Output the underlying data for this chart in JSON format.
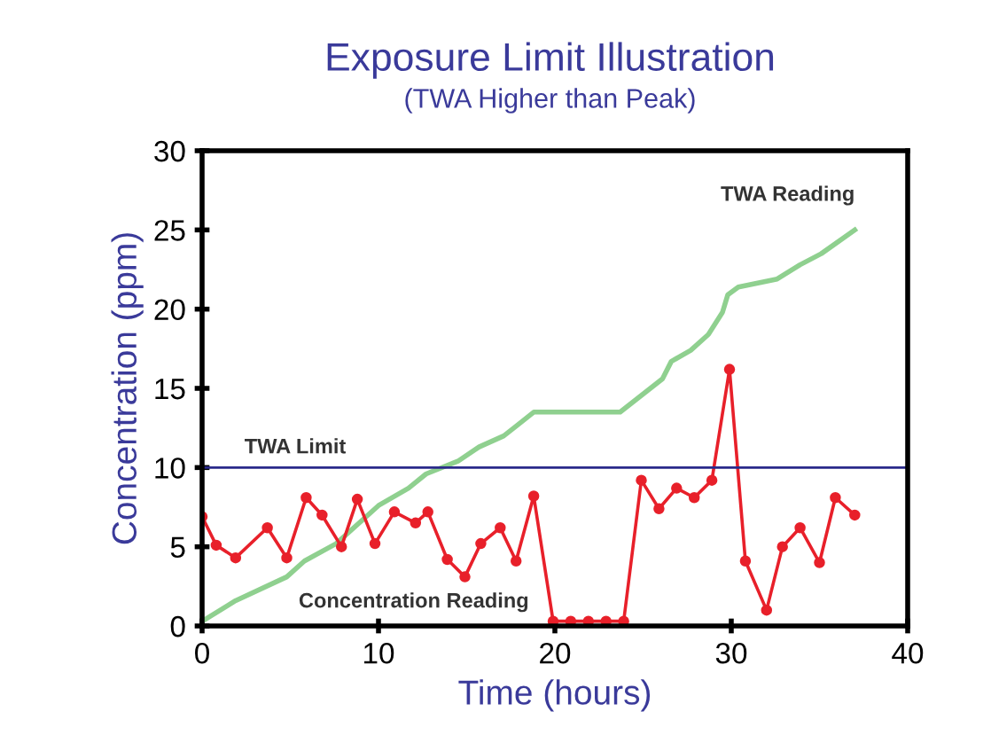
{
  "chart_data": {
    "type": "line",
    "title": "Exposure Limit Illustration",
    "subtitle": "(TWA Higher than Peak)",
    "xlabel": "Time (hours)",
    "ylabel": "Concentration (ppm)",
    "xlim": [
      0,
      40
    ],
    "xticks": [
      0,
      10,
      20,
      30,
      40
    ],
    "ylim": [
      0,
      30
    ],
    "yticks": [
      0,
      5,
      10,
      15,
      20,
      25,
      30
    ],
    "grid": false,
    "line_style": "solid",
    "series": [
      {
        "name": "TWA Reading",
        "color": "#8fd08f",
        "marker": "none",
        "x": [
          0,
          1.9,
          4.8,
          5.8,
          7.6,
          10,
          11.7,
          12.7,
          14.5,
          15.7,
          17.1,
          17.9,
          18.8,
          23.7,
          26.1,
          26.6,
          27.7,
          28.7,
          29.5,
          29.8,
          30.4,
          32.6,
          33.9,
          35.1,
          37
        ],
        "values": [
          0.3,
          1.6,
          3.1,
          4.1,
          5.2,
          7.6,
          8.7,
          9.6,
          10.4,
          11.3,
          12,
          12.7,
          13.5,
          13.5,
          15.6,
          16.7,
          17.4,
          18.4,
          19.8,
          20.9,
          21.4,
          21.9,
          22.8,
          23.5,
          25
        ]
      },
      {
        "name": "Concentration Reading",
        "color": "#e8202a",
        "marker": "circle",
        "x": [
          0,
          0.8,
          1.9,
          3.7,
          4.8,
          5.9,
          6.8,
          7.9,
          8.8,
          9.8,
          10.9,
          12.1,
          12.8,
          13.9,
          14.9,
          15.8,
          16.9,
          17.8,
          18.8,
          19.9,
          20.9,
          21.9,
          22.9,
          23.9,
          24.9,
          25.9,
          26.9,
          27.9,
          28.9,
          29.9,
          30.8,
          32,
          32.9,
          33.9,
          35,
          35.9,
          37
        ],
        "values": [
          6.9,
          5.1,
          4.3,
          6.2,
          4.3,
          8.1,
          7,
          5,
          8,
          5.2,
          7.2,
          6.5,
          7.2,
          4.2,
          3.1,
          5.2,
          6.2,
          4.1,
          8.2,
          0.3,
          0.3,
          0.3,
          0.3,
          0.3,
          9.2,
          7.4,
          8.7,
          8.1,
          9.2,
          16.2,
          4.1,
          1,
          5,
          6.2,
          4,
          8.1,
          7
        ]
      }
    ],
    "ref_lines": [
      {
        "axis": "y",
        "value": 10,
        "label": "TWA Limit",
        "color": "#2a2a8a"
      }
    ]
  }
}
